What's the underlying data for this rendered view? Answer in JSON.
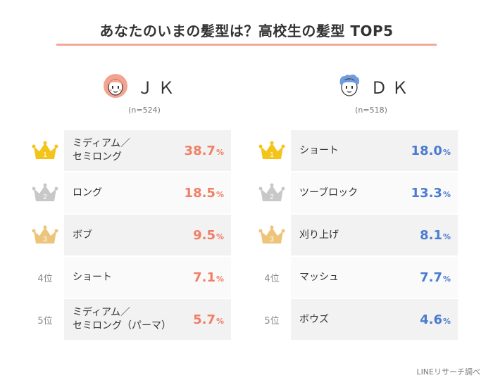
{
  "title": "あなたのいまの髪型は？高校生の髪型 TOP5",
  "footer": "LINEリサーチ調べ",
  "colors": {
    "title_line": "#f3a89b",
    "jk_value": "#f07f66",
    "dk_value": "#4a7bd0",
    "row_odd": "#f2f2f2",
    "row_even": "#fafafa",
    "crown_gold": "#f4c41a",
    "crown_silver": "#c8c8c8",
    "crown_bronze": "#ecc47a"
  },
  "groups": [
    {
      "label": "ＪＫ",
      "count": "(n=524)",
      "avatar": "girl-icon"
    },
    {
      "label": "ＤＫ",
      "count": "(n=518)",
      "avatar": "boy-icon"
    }
  ],
  "chart_data": [
    {
      "type": "table",
      "group": "ＪＫ",
      "unit": "%",
      "ranks": [
        "1",
        "2",
        "3",
        "4位",
        "5位"
      ],
      "categories": [
        "ミディアム／\nセミロング",
        "ロング",
        "ボブ",
        "ショート",
        "ミディアム／\nセミロング（パーマ）"
      ],
      "values": [
        38.7,
        18.5,
        9.5,
        7.1,
        5.7
      ]
    },
    {
      "type": "table",
      "group": "ＤＫ",
      "unit": "%",
      "ranks": [
        "1",
        "2",
        "3",
        "4位",
        "5位"
      ],
      "categories": [
        "ショート",
        "ツーブロック",
        "刈り上げ",
        "マッシュ",
        "ボウズ"
      ],
      "values": [
        18.0,
        13.3,
        8.1,
        7.7,
        4.6
      ]
    }
  ]
}
